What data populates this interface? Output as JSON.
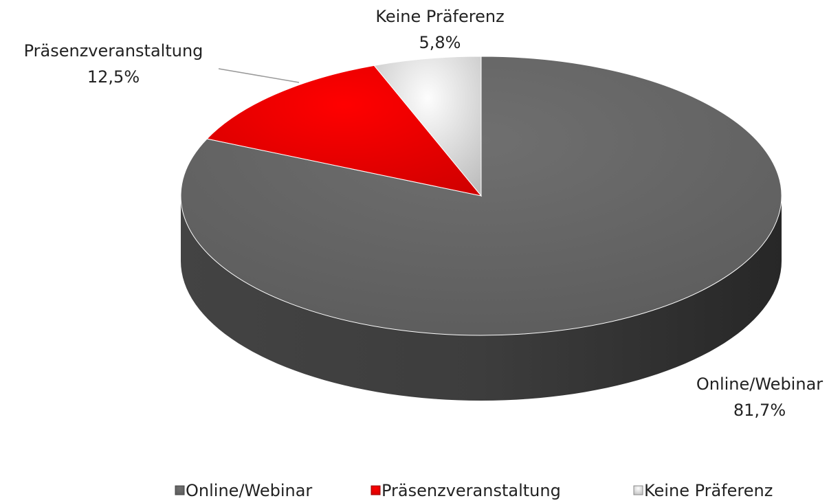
{
  "chart_data": {
    "type": "pie",
    "categories": [
      "Online/Webinar",
      "Präsenzveranstaltung",
      "Keine Präferenz"
    ],
    "values": [
      81.7,
      12.5,
      5.8
    ],
    "value_labels": [
      "81,7%",
      "12,5%",
      "5,8%"
    ],
    "colors": [
      "#6f6f6f",
      "#ff0000",
      "#e6e6e6"
    ],
    "legend": "bottom"
  }
}
